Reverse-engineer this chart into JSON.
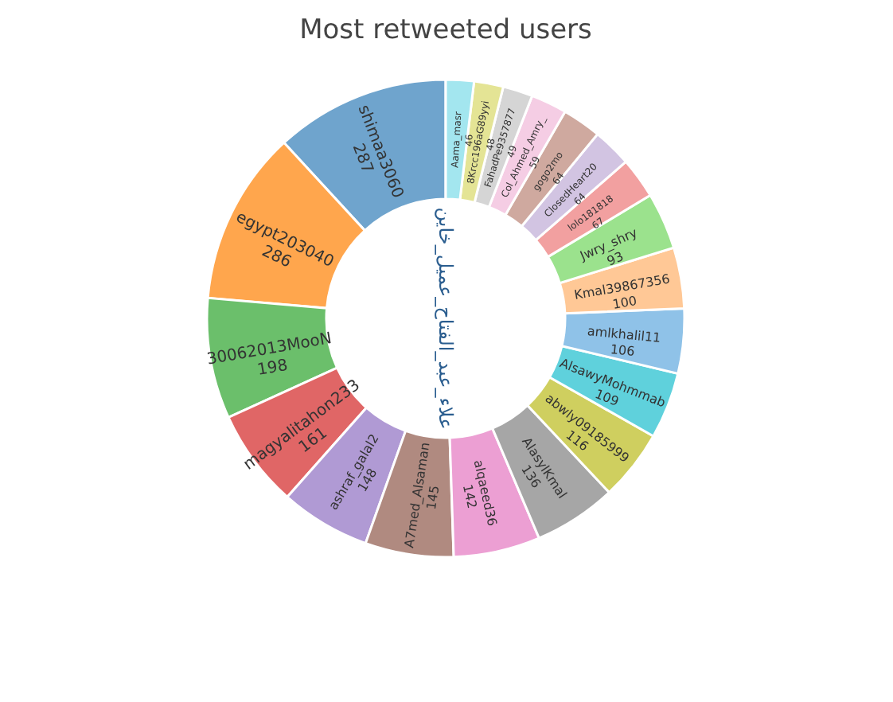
{
  "chart_data": {
    "type": "donut",
    "title": "Most retweeted users",
    "categories": [
      "shimaa3060",
      "egypt203040",
      "30062013MooN",
      "magyalitahon233",
      "ashraf_galal2",
      "A7med_Alsaman",
      "alqaeed36",
      "AlasylKmal",
      "abwly09185999",
      "AlsawyMohmmab",
      "amlkhalil11",
      "Kmal39867356",
      "Jwry_shry",
      "lolo181818",
      "ClosedHeart20",
      "gogo2mo",
      "Col_Ahmed_Amry_",
      "FahadPe9357877",
      "8Krcc196aG89yyi",
      "Aama_masr"
    ],
    "values": [
      287,
      286,
      198,
      161,
      148,
      145,
      142,
      136,
      116,
      109,
      106,
      100,
      93,
      67,
      64,
      64,
      59,
      49,
      48,
      46
    ],
    "colors": [
      "#6fa4cd",
      "#ffa64d",
      "#6bbf6b",
      "#e06666",
      "#b09ad4",
      "#b08a80",
      "#ec9fd3",
      "#a6a6a6",
      "#cfcf5f",
      "#5fd1dc",
      "#8fc2e8",
      "#ffc896",
      "#9be28d",
      "#f2a0a0",
      "#d2c4e2",
      "#cfa99f",
      "#f5cde4",
      "#d5d5d5",
      "#e4e495",
      "#a3e6ef"
    ],
    "annotations": [
      "علاء_عبد_الفتاح_عميل_خاين"
    ],
    "data_labels": true,
    "legend": false
  }
}
